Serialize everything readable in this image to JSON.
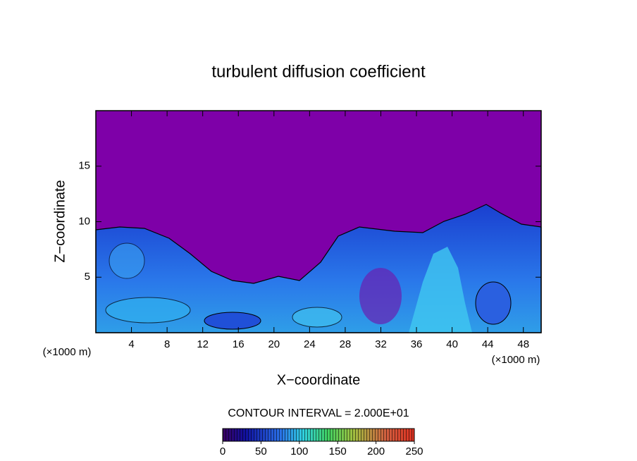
{
  "chart_data": {
    "type": "contour",
    "title": "turbulent diffusion coefficient",
    "xlabel": "X−coordinate",
    "ylabel": "Z−coordinate",
    "x_unit_label": "(×1000 m)",
    "y_unit_label": "(×1000 m)",
    "xlim": [
      0,
      50
    ],
    "ylim": [
      0,
      20
    ],
    "xticks": [
      4,
      8,
      12,
      16,
      20,
      24,
      28,
      32,
      36,
      40,
      44,
      48
    ],
    "yticks": [
      5,
      10,
      15
    ],
    "contour_interval_label": "CONTOUR INTERVAL = 2.000E+01",
    "colorbar": {
      "lim": [
        0,
        250
      ],
      "ticks": [
        0,
        50,
        100,
        150,
        200,
        250
      ]
    }
  }
}
